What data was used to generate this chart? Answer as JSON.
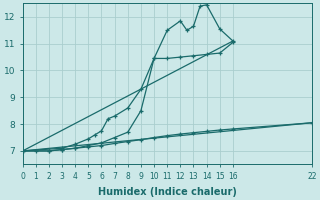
{
  "xlabel": "Humidex (Indice chaleur)",
  "bg_color": "#cce8e8",
  "grid_color": "#aacece",
  "line_color": "#1a6b6b",
  "xlim": [
    0,
    22
  ],
  "ylim": [
    6.5,
    12.5
  ],
  "xticks": [
    0,
    1,
    2,
    3,
    4,
    5,
    6,
    7,
    8,
    9,
    10,
    11,
    12,
    13,
    14,
    15,
    16,
    22
  ],
  "yticks": [
    7,
    8,
    9,
    10,
    11,
    12
  ],
  "series1_x": [
    0,
    1,
    2,
    3,
    4,
    5,
    6,
    7,
    8,
    9,
    10,
    11,
    12,
    13,
    14,
    15,
    16,
    22
  ],
  "series1_y": [
    7.0,
    7.0,
    7.0,
    7.05,
    7.1,
    7.15,
    7.2,
    7.28,
    7.35,
    7.42,
    7.5,
    7.57,
    7.63,
    7.68,
    7.73,
    7.78,
    7.82,
    8.05
  ],
  "series2_x": [
    0,
    2,
    3,
    4,
    5,
    6,
    7,
    8,
    9,
    10,
    11,
    12,
    13,
    14,
    15,
    16
  ],
  "series2_y": [
    7.0,
    7.0,
    7.05,
    7.1,
    7.2,
    7.3,
    7.5,
    7.7,
    8.5,
    10.45,
    10.45,
    10.5,
    10.55,
    10.6,
    10.65,
    11.05
  ],
  "series3_x": [
    0,
    3,
    4,
    5,
    5.5,
    6,
    6.5,
    7,
    8,
    9,
    10,
    11,
    12,
    12.5,
    13,
    13.5,
    14,
    15,
    16
  ],
  "series3_y": [
    7.0,
    7.1,
    7.25,
    7.45,
    7.6,
    7.75,
    8.2,
    8.3,
    8.6,
    9.3,
    10.45,
    11.5,
    11.85,
    11.5,
    11.65,
    12.4,
    12.45,
    11.55,
    11.1
  ],
  "refline1_x": [
    0,
    16
  ],
  "refline1_y": [
    7.0,
    11.1
  ],
  "refline2_x": [
    0,
    22
  ],
  "refline2_y": [
    7.0,
    8.05
  ]
}
